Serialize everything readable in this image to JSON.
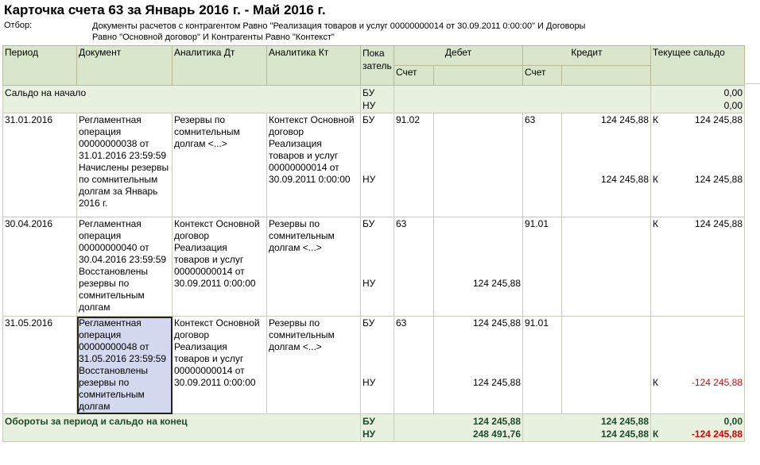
{
  "title": "Карточка счета 63 за Январь 2016 г. - Май 2016 г.",
  "filter": {
    "label": "Отбор:",
    "line1": "Документы расчетов с контрагентом Равно \"Реализация товаров и услуг 00000000014 от 30.09.2011 0:00:00\" И Договоры",
    "line2": "Равно \"Основной договор\" И Контрагенты Равно \"Контекст\""
  },
  "headers": {
    "period": "Период",
    "document": "Документ",
    "an_dt": "Аналитика Дт",
    "an_kt": "Аналитика Кт",
    "indicator": "Пока затель",
    "debit": "Дебет",
    "credit": "Кредит",
    "balance": "Текущее сальдо",
    "account": "Счет"
  },
  "opening": {
    "label": "Сальдо на начало",
    "bu": "БУ",
    "nu": "НУ",
    "bu_balance": "0,00",
    "nu_balance": "0,00"
  },
  "rows": [
    {
      "period": "31.01.2016",
      "document": "Регламентная операция 00000000038 от 31.01.2016 23:59:59 Начислены резервы по сомнительным долгам за Январь 2016 г.",
      "an_dt": "Резервы по сомнительным долгам <...>",
      "an_kt": "Контекст Основной договор Реализация товаров и услуг 00000000014 от 30.09.2011 0:00:00",
      "bu": "БУ",
      "nu": "НУ",
      "dt_acc": "91.02",
      "dt_bu": "",
      "dt_nu": "",
      "kt_acc": "63",
      "kt_bu": "124 245,88",
      "kt_nu": "124 245,88",
      "bal_bu_side": "К",
      "bal_bu": "124 245,88",
      "bal_nu_side": "К",
      "bal_nu": "124 245,88"
    },
    {
      "period": "30.04.2016",
      "document": "Регламентная операция 00000000040 от 30.04.2016 23:59:59 Восстановлены резервы по сомнительным долгам",
      "an_dt": "Контекст Основной договор Реализация товаров и услуг 00000000014 от 30.09.2011 0:00:00",
      "an_kt": "Резервы по сомнительным долгам <...>",
      "bu": "БУ",
      "nu": "НУ",
      "dt_acc": "63",
      "dt_bu": "",
      "dt_nu": "124 245,88",
      "kt_acc": "91.01",
      "kt_bu": "",
      "kt_nu": "",
      "bal_bu_side": "К",
      "bal_bu": "124 245,88",
      "bal_nu_side": "",
      "bal_nu": ""
    },
    {
      "period": "31.05.2016",
      "document": "Регламентная операция 00000000048 от 31.05.2016 23:59:59 Восстановлены резервы по сомнительным долгам",
      "an_dt": "Контекст Основной договор Реализация товаров и услуг 00000000014 от 30.09.2011 0:00:00",
      "an_kt": "Резервы по сомнительным долгам <...>",
      "bu": "БУ",
      "nu": "НУ",
      "dt_acc": "63",
      "dt_bu": "124 245,88",
      "dt_nu": "124 245,88",
      "kt_acc": "91.01",
      "kt_bu": "",
      "kt_nu": "",
      "bal_bu_side": "",
      "bal_bu": "",
      "bal_nu_side": "К",
      "bal_nu": "-124 245,88"
    }
  ],
  "footer": {
    "label": "Обороты за период и сальдо на конец",
    "bu": "БУ",
    "nu": "НУ",
    "dt_bu": "124 245,88",
    "dt_nu": "248 491,76",
    "kt_bu": "124 245,88",
    "kt_nu": "124 245,88",
    "bal_bu": "0,00",
    "bal_nu_side": "К",
    "bal_nu": "-124 245,88"
  },
  "colors": {
    "header_bg": "#d9e6cc",
    "row_bg": "#e8f1df",
    "negative": "#e00000",
    "selection": "#d5d9f0"
  }
}
